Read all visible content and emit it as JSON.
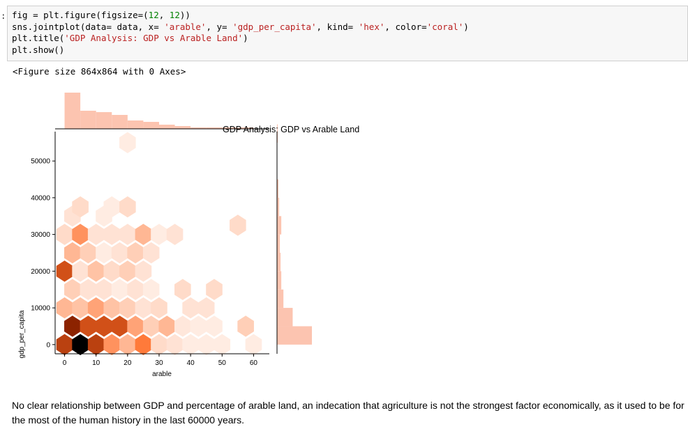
{
  "notebook": {
    "prompt": ":",
    "code_lines": [
      [
        {
          "t": "fig = plt.figure(figsize=(",
          "c": "#000"
        },
        {
          "t": "12",
          "c": "#008000"
        },
        {
          "t": ", ",
          "c": "#000"
        },
        {
          "t": "12",
          "c": "#008000"
        },
        {
          "t": "))",
          "c": "#000"
        }
      ],
      [
        {
          "t": "sns.jointplot(data= data, x= ",
          "c": "#000"
        },
        {
          "t": "'arable'",
          "c": "#ba2121"
        },
        {
          "t": ", y= ",
          "c": "#000"
        },
        {
          "t": "'gdp_per_capita'",
          "c": "#ba2121"
        },
        {
          "t": ", kind= ",
          "c": "#000"
        },
        {
          "t": "'hex'",
          "c": "#ba2121"
        },
        {
          "t": ", color=",
          "c": "#000"
        },
        {
          "t": "'coral'",
          "c": "#ba2121"
        },
        {
          "t": ")",
          "c": "#000"
        }
      ],
      [
        {
          "t": "plt.title(",
          "c": "#000"
        },
        {
          "t": "'GDP Analysis: GDP vs Arable Land'",
          "c": "#ba2121"
        },
        {
          "t": ")",
          "c": "#000"
        }
      ],
      [
        {
          "t": "plt.show()",
          "c": "#000"
        }
      ]
    ],
    "output_text": "<Figure size 864x864 with 0 Axes>",
    "markdown_text": "No clear relationship between GDP and percentage of arable land, an indecation that agriculture is not the strongest factor economically, as it used to be for the most of the human history in the last 60000 years."
  },
  "chart_data": {
    "type": "hexbin",
    "title": "GDP Analysis: GDP vs Arable Land",
    "xlabel": "arable",
    "ylabel": "gdp_per_capita",
    "xlim": [
      -3,
      65
    ],
    "ylim": [
      -2500,
      58000
    ],
    "x_ticks": [
      0,
      10,
      20,
      30,
      40,
      50,
      60
    ],
    "y_ticks": [
      0,
      10000,
      20000,
      30000,
      40000,
      50000
    ],
    "colors": {
      "base": "#ff7f50",
      "max": "#000000",
      "hist": "#fcc4b0"
    },
    "hexbins": [
      {
        "x": 0,
        "y": 0,
        "c": 0.78
      },
      {
        "x": 5,
        "y": 0,
        "c": 1.0
      },
      {
        "x": 10,
        "y": 0,
        "c": 0.78
      },
      {
        "x": 15,
        "y": 0,
        "c": 0.45
      },
      {
        "x": 20,
        "y": 0,
        "c": 0.3
      },
      {
        "x": 25,
        "y": 0,
        "c": 0.55
      },
      {
        "x": 30,
        "y": 0,
        "c": 0.15
      },
      {
        "x": 35,
        "y": 0,
        "c": 0.12
      },
      {
        "x": 40,
        "y": 0,
        "c": 0.08
      },
      {
        "x": 45,
        "y": 0,
        "c": 0.08
      },
      {
        "x": 50,
        "y": 0,
        "c": 0.08
      },
      {
        "x": 60,
        "y": 0,
        "c": 0.08
      },
      {
        "x": 2.5,
        "y": 5000,
        "c": 0.9
      },
      {
        "x": 7.5,
        "y": 5000,
        "c": 0.72
      },
      {
        "x": 12.5,
        "y": 5000,
        "c": 0.72
      },
      {
        "x": 17.5,
        "y": 5000,
        "c": 0.72
      },
      {
        "x": 22.5,
        "y": 5000,
        "c": 0.38
      },
      {
        "x": 27.5,
        "y": 5000,
        "c": 0.2
      },
      {
        "x": 32.5,
        "y": 5000,
        "c": 0.3
      },
      {
        "x": 37.5,
        "y": 5000,
        "c": 0.1
      },
      {
        "x": 42.5,
        "y": 5000,
        "c": 0.08
      },
      {
        "x": 47.5,
        "y": 5000,
        "c": 0.08
      },
      {
        "x": 57.5,
        "y": 5000,
        "c": 0.2
      },
      {
        "x": 0,
        "y": 10000,
        "c": 0.3
      },
      {
        "x": 5,
        "y": 10000,
        "c": 0.25
      },
      {
        "x": 10,
        "y": 10000,
        "c": 0.38
      },
      {
        "x": 15,
        "y": 10000,
        "c": 0.25
      },
      {
        "x": 20,
        "y": 10000,
        "c": 0.2
      },
      {
        "x": 25,
        "y": 10000,
        "c": 0.12
      },
      {
        "x": 30,
        "y": 10000,
        "c": 0.15
      },
      {
        "x": 40,
        "y": 10000,
        "c": 0.12
      },
      {
        "x": 45,
        "y": 10000,
        "c": 0.12
      },
      {
        "x": 2.5,
        "y": 15000,
        "c": 0.2
      },
      {
        "x": 7.5,
        "y": 15000,
        "c": 0.12
      },
      {
        "x": 12.5,
        "y": 15000,
        "c": 0.12
      },
      {
        "x": 17.5,
        "y": 15000,
        "c": 0.08
      },
      {
        "x": 22.5,
        "y": 15000,
        "c": 0.12
      },
      {
        "x": 27.5,
        "y": 15000,
        "c": 0.08
      },
      {
        "x": 37.5,
        "y": 15000,
        "c": 0.15
      },
      {
        "x": 47.5,
        "y": 15000,
        "c": 0.15
      },
      {
        "x": 0,
        "y": 20000,
        "c": 0.72
      },
      {
        "x": 5,
        "y": 20000,
        "c": 0.12
      },
      {
        "x": 10,
        "y": 20000,
        "c": 0.25
      },
      {
        "x": 15,
        "y": 20000,
        "c": 0.15
      },
      {
        "x": 20,
        "y": 20000,
        "c": 0.2
      },
      {
        "x": 25,
        "y": 20000,
        "c": 0.12
      },
      {
        "x": 2.5,
        "y": 25000,
        "c": 0.3
      },
      {
        "x": 7.5,
        "y": 25000,
        "c": 0.2
      },
      {
        "x": 12.5,
        "y": 25000,
        "c": 0.08
      },
      {
        "x": 17.5,
        "y": 25000,
        "c": 0.12
      },
      {
        "x": 22.5,
        "y": 25000,
        "c": 0.2
      },
      {
        "x": 27.5,
        "y": 25000,
        "c": 0.12
      },
      {
        "x": 0,
        "y": 30000,
        "c": 0.15
      },
      {
        "x": 5,
        "y": 30000,
        "c": 0.45
      },
      {
        "x": 10,
        "y": 30000,
        "c": 0.12
      },
      {
        "x": 15,
        "y": 30000,
        "c": 0.12
      },
      {
        "x": 20,
        "y": 30000,
        "c": 0.12
      },
      {
        "x": 25,
        "y": 30000,
        "c": 0.3
      },
      {
        "x": 30,
        "y": 30000,
        "c": 0.08
      },
      {
        "x": 35,
        "y": 30000,
        "c": 0.12
      },
      {
        "x": 2.5,
        "y": 35000,
        "c": 0.12
      },
      {
        "x": 12.5,
        "y": 35000,
        "c": 0.08
      },
      {
        "x": 55,
        "y": 32500,
        "c": 0.15
      },
      {
        "x": 5,
        "y": 37500,
        "c": 0.15
      },
      {
        "x": 15,
        "y": 37500,
        "c": 0.08
      },
      {
        "x": 20,
        "y": 37500,
        "c": 0.15
      },
      {
        "x": 20,
        "y": 55000,
        "c": 0.08
      }
    ],
    "x_marginal": {
      "bin_edges": [
        0,
        5,
        10,
        15,
        20,
        25,
        30,
        35,
        40,
        45,
        50,
        55,
        60,
        65
      ],
      "counts": [
        26,
        13,
        12,
        10,
        6,
        5,
        3,
        2,
        1,
        1,
        1,
        1,
        0
      ]
    },
    "y_marginal": {
      "bin_edges": [
        0,
        5000,
        10000,
        15000,
        20000,
        25000,
        30000,
        35000,
        40000,
        45000,
        50000,
        55000,
        60000
      ],
      "counts": [
        49,
        22,
        9,
        6,
        5,
        4,
        6,
        3,
        2,
        0,
        0,
        1
      ]
    }
  }
}
